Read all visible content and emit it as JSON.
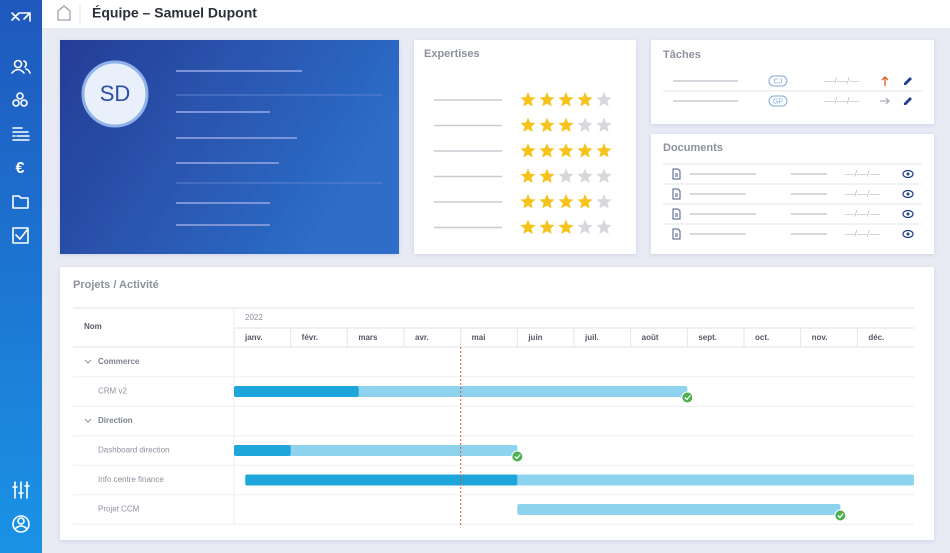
{
  "header": {
    "title": "Équipe – Samuel Dupont"
  },
  "profile": {
    "initials": "SD"
  },
  "expertises": {
    "title": "Expertises",
    "ratings": [
      4,
      3,
      5,
      2,
      4,
      3
    ],
    "max": 5
  },
  "tasks": {
    "title": "Tâches",
    "items": [
      {
        "badge": "CJ",
        "date": "––/––/––"
      },
      {
        "badge": "GP",
        "date": "––/––/––"
      }
    ]
  },
  "documents": {
    "title": "Documents",
    "items": [
      {
        "date": "––/––/––"
      },
      {
        "date": "––/––/––"
      },
      {
        "date": "––/––/––"
      },
      {
        "date": "––/––/––"
      }
    ]
  },
  "projects": {
    "title": "Projets / Activité",
    "name_header": "Nom",
    "year": "2022",
    "months": [
      "janv.",
      "févr.",
      "mars",
      "avr.",
      "mai",
      "juin",
      "juil.",
      "août",
      "sept.",
      "oct.",
      "nov.",
      "déc."
    ],
    "today": 4,
    "rows": [
      {
        "label": "Commerce",
        "group": true
      },
      {
        "label": "CRM v2",
        "start": 0,
        "end": 8,
        "progress": 2.2,
        "completed": true
      },
      {
        "label": "Direction",
        "group": true
      },
      {
        "label": "Dashboard direction",
        "start": 0,
        "end": 5,
        "progress": 1,
        "completed": true
      },
      {
        "label": "Info centre finance",
        "start": 0.2,
        "end": 12,
        "progress": 5,
        "completed": false
      },
      {
        "label": "Projet CCM",
        "start": 5,
        "end": 10.7,
        "progress": null,
        "completed": true
      }
    ]
  }
}
